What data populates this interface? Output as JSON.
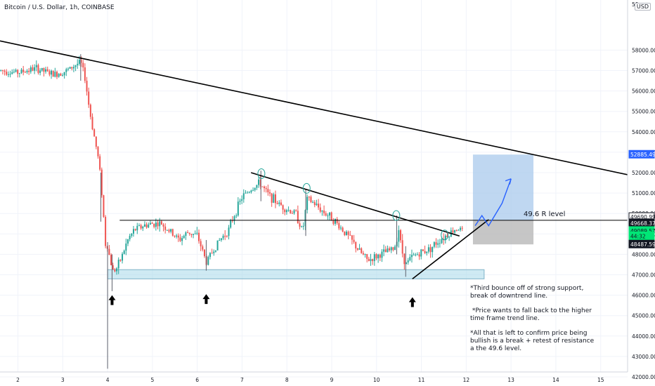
{
  "header": {
    "title": "Bitcoin / U.S. Dollar, 1h, COINBASE",
    "currency": "USD"
  },
  "chart_data": {
    "type": "candlestick",
    "xlabel": "",
    "ylabel": "",
    "ylim": [
      41700,
      59000
    ],
    "xlim": [
      1.6,
      15.6
    ],
    "x_ticks": [
      "2",
      "3",
      "4",
      "5",
      "6",
      "7",
      "8",
      "9",
      "10",
      "11",
      "12",
      "13",
      "14",
      "15"
    ],
    "y_ticks": [
      42000,
      43000,
      44000,
      45000,
      46000,
      47000,
      48000,
      49000,
      50000,
      51000,
      52000,
      53000,
      54000,
      55000,
      56000,
      57000,
      58000
    ],
    "y_tick_labels": [
      "42000.00",
      "43000.00",
      "44000.00",
      "45000.00",
      "46000.00",
      "47000.00",
      "48000.00",
      "49000.00",
      "50000.00",
      "51000.00",
      "52000.00",
      "53000.00",
      "54000.00",
      "55000.00",
      "56000.00",
      "57000.00",
      "58000.00"
    ],
    "top_partial_tick": "59",
    "price_path": [
      [
        1.62,
        57000
      ],
      [
        2.0,
        56900
      ],
      [
        2.4,
        57100
      ],
      [
        2.8,
        56800
      ],
      [
        3.1,
        57000
      ],
      [
        3.3,
        57300
      ],
      [
        3.4,
        57400
      ],
      [
        3.5,
        56600
      ],
      [
        3.6,
        55000
      ],
      [
        3.7,
        53800
      ],
      [
        3.8,
        52600
      ],
      [
        3.85,
        51600
      ],
      [
        3.9,
        50200
      ],
      [
        3.95,
        48500
      ],
      [
        4.0,
        48400
      ],
      [
        4.05,
        47800
      ],
      [
        4.12,
        47200
      ],
      [
        4.2,
        47300
      ],
      [
        4.3,
        47800
      ],
      [
        4.45,
        48700
      ],
      [
        4.6,
        49200
      ],
      [
        4.8,
        49400
      ],
      [
        5.0,
        49500
      ],
      [
        5.2,
        49500
      ],
      [
        5.4,
        49100
      ],
      [
        5.6,
        48700
      ],
      [
        5.8,
        49100
      ],
      [
        6.0,
        48900
      ],
      [
        6.1,
        48300
      ],
      [
        6.2,
        47600
      ],
      [
        6.3,
        48000
      ],
      [
        6.5,
        48700
      ],
      [
        6.7,
        49200
      ],
      [
        6.8,
        49800
      ],
      [
        7.0,
        50800
      ],
      [
        7.2,
        51200
      ],
      [
        7.4,
        51500
      ],
      [
        7.55,
        51000
      ],
      [
        7.8,
        50500
      ],
      [
        8.0,
        50200
      ],
      [
        8.2,
        50000
      ],
      [
        8.35,
        49100
      ],
      [
        8.45,
        50700
      ],
      [
        8.6,
        50500
      ],
      [
        8.8,
        50100
      ],
      [
        9.0,
        49800
      ],
      [
        9.2,
        49300
      ],
      [
        9.4,
        48800
      ],
      [
        9.6,
        48200
      ],
      [
        9.8,
        47700
      ],
      [
        10.0,
        47900
      ],
      [
        10.2,
        48100
      ],
      [
        10.4,
        48300
      ],
      [
        10.5,
        49300
      ],
      [
        10.55,
        48300
      ],
      [
        10.65,
        47500
      ],
      [
        10.8,
        47900
      ],
      [
        11.0,
        48100
      ],
      [
        11.2,
        48300
      ],
      [
        11.4,
        48700
      ],
      [
        11.6,
        49000
      ],
      [
        11.8,
        49300
      ],
      [
        11.95,
        49100
      ]
    ],
    "spikes": [
      {
        "x": 3.4,
        "high": 57800,
        "low": 56500
      },
      {
        "x": 3.85,
        "high": 52000,
        "low": 49600
      },
      {
        "x": 4.0,
        "high": 48600,
        "low": 42400
      },
      {
        "x": 4.1,
        "high": 48000,
        "low": 46200
      },
      {
        "x": 6.2,
        "high": 48700,
        "low": 47200
      },
      {
        "x": 7.42,
        "high": 52100,
        "low": 50600
      },
      {
        "x": 8.42,
        "high": 51200,
        "low": 48900
      },
      {
        "x": 10.45,
        "high": 49900,
        "low": 48000
      },
      {
        "x": 10.65,
        "high": 48400,
        "low": 46900
      }
    ],
    "lines": [
      {
        "name": "long-term-downtrend",
        "x1": 1.6,
        "y1": 58450,
        "x2": 15.6,
        "y2": 51900
      },
      {
        "name": "short-term-downtrend",
        "x1": 7.2,
        "y1": 52000,
        "x2": 11.85,
        "y2": 48900
      },
      {
        "name": "rising-support",
        "x1": 10.8,
        "y1": 46800,
        "x2": 12.5,
        "y2": 49700
      },
      {
        "name": "resistance-49.6",
        "x1": 4.27,
        "y1": 49668,
        "x2": 15.6,
        "y2": 49668
      }
    ],
    "support_zone": {
      "x1": 4.0,
      "x2": 12.4,
      "y1": 46800,
      "y2": 47250
    },
    "target_box": {
      "x1": 12.15,
      "x2": 13.5,
      "y1": 49668,
      "y2": 52885
    },
    "stop_box": {
      "x1": 12.15,
      "x2": 13.5,
      "y1": 48487,
      "y2": 49668
    },
    "circles": [
      {
        "x": 7.43,
        "y": 51950
      },
      {
        "x": 8.44,
        "y": 51230
      },
      {
        "x": 10.44,
        "y": 49900
      },
      {
        "x": 11.52,
        "y": 48950
      }
    ],
    "up_arrows": [
      {
        "x": 4.1,
        "y": 46000
      },
      {
        "x": 6.2,
        "y": 46050
      },
      {
        "x": 10.8,
        "y": 45900
      }
    ],
    "projection": [
      [
        12.2,
        49400
      ],
      [
        12.35,
        49900
      ],
      [
        12.5,
        49400
      ],
      [
        12.8,
        50500
      ],
      [
        13.0,
        51700
      ]
    ],
    "annotations": {
      "resistance_label": "49.6 R level",
      "notes": [
        "*Third bounce off of strong support, break of downtrend line.",
        " *Price wants to fall back to the higher time frame trend line.",
        "*All that is left to confirm price being bullish is a break + retest of resistance a the 49.6 level."
      ]
    },
    "price_labels": [
      {
        "value": "52885.49",
        "price": 52885,
        "bg": "#2962ff",
        "fg": "#ffffff"
      },
      {
        "value": "49690.99",
        "price": 49830,
        "bg": "#ffffff",
        "fg": "#131722",
        "border": "#131722"
      },
      {
        "value": "49668.37",
        "price": 49530,
        "bg": "#131722",
        "fg": "#ffffff"
      },
      {
        "value": "49089.57",
        "price": 49150,
        "bg": "#00e676",
        "fg": "#131722"
      },
      {
        "value": "44:32",
        "price": 48890,
        "bg": "#00e676",
        "fg": "#131722"
      },
      {
        "value": "48487.59",
        "price": 48487,
        "bg": "#131722",
        "fg": "#ffffff"
      }
    ],
    "colors": {
      "up": "#26a69a",
      "down": "#ef5350",
      "wick": "#5d606b",
      "support": "#a8d8ea",
      "target": "#a9c9ec",
      "stop": "#b8b8b8",
      "projection": "#2962ff",
      "circle": "#26a69a",
      "grid": "#f0f3fa"
    }
  }
}
